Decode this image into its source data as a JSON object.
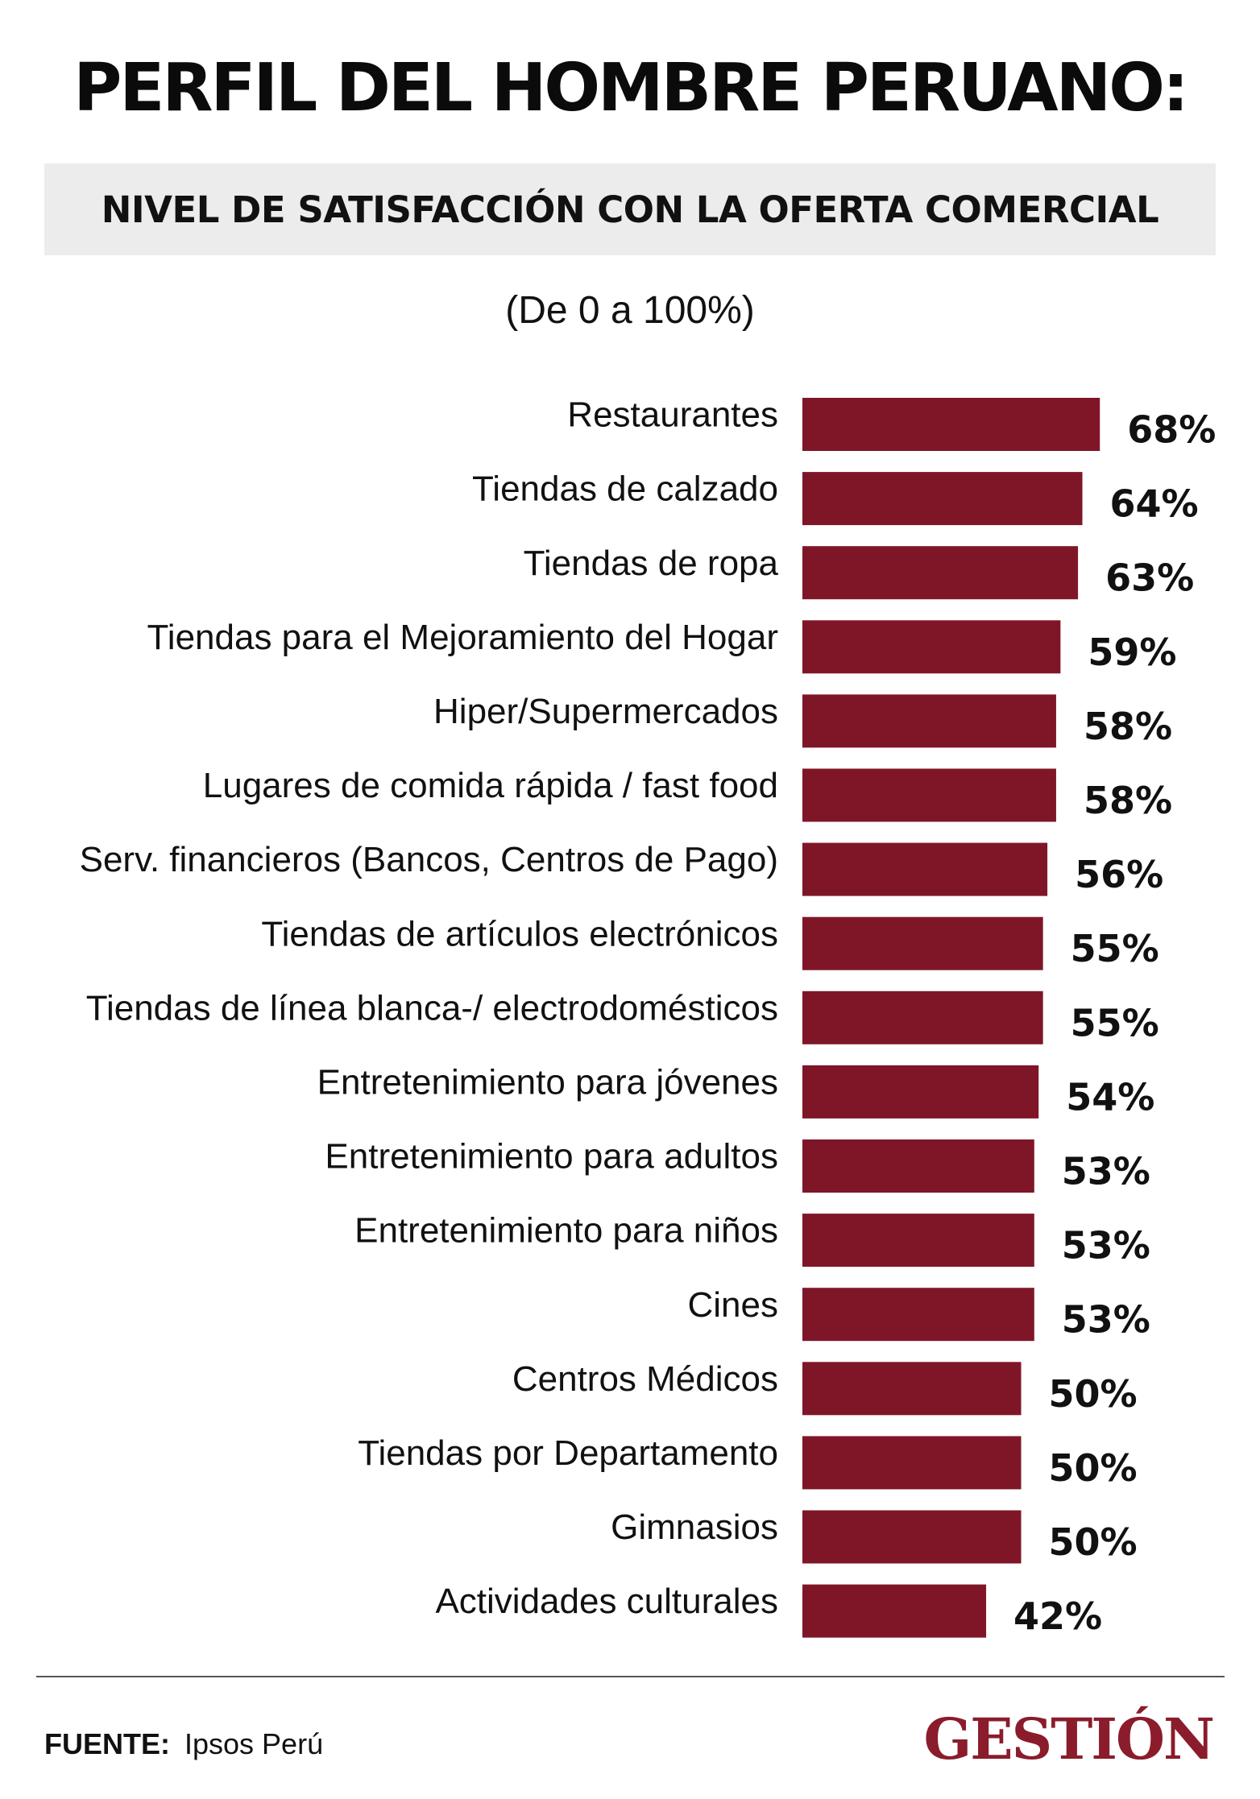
{
  "header": {
    "title": "PERFIL DEL HOMBRE PERUANO:",
    "subtitle": "NIVEL DE SATISFACCIÓN CON LA OFERTA COMERCIAL",
    "range_note": "(De 0 a 100%)"
  },
  "colors": {
    "bar": "#7f1628",
    "subtitle_bg": "#ececec",
    "logo": "#8b1c2b"
  },
  "chart_data": {
    "type": "bar",
    "orientation": "horizontal",
    "title": "NIVEL DE SATISFACCIÓN CON LA OFERTA COMERCIAL",
    "xlabel": "",
    "ylabel": "",
    "xlim": [
      0,
      100
    ],
    "unit": "%",
    "grid": false,
    "categories": [
      "Restaurantes",
      "Tiendas de calzado",
      "Tiendas de ropa",
      "Tiendas para el Mejoramiento del Hogar",
      "Hiper/Supermercados",
      "Lugares de comida rápida / fast food",
      "Serv. financieros (Bancos, Centros de Pago)",
      "Tiendas de artículos electrónicos",
      "Tiendas de línea blanca-/ electrodomésticos",
      "Entretenimiento para jóvenes",
      "Entretenimiento para adultos",
      "Entretenimiento para niños",
      "Cines",
      "Centros Médicos",
      "Tiendas por Departamento",
      "Gimnasios",
      "Actividades culturales"
    ],
    "values": [
      68,
      64,
      63,
      59,
      58,
      58,
      56,
      55,
      55,
      54,
      53,
      53,
      53,
      50,
      50,
      50,
      42
    ]
  },
  "footer": {
    "source_label": "FUENTE:",
    "source_value": "Ipsos Perú",
    "brand": "GESTIÓN"
  }
}
